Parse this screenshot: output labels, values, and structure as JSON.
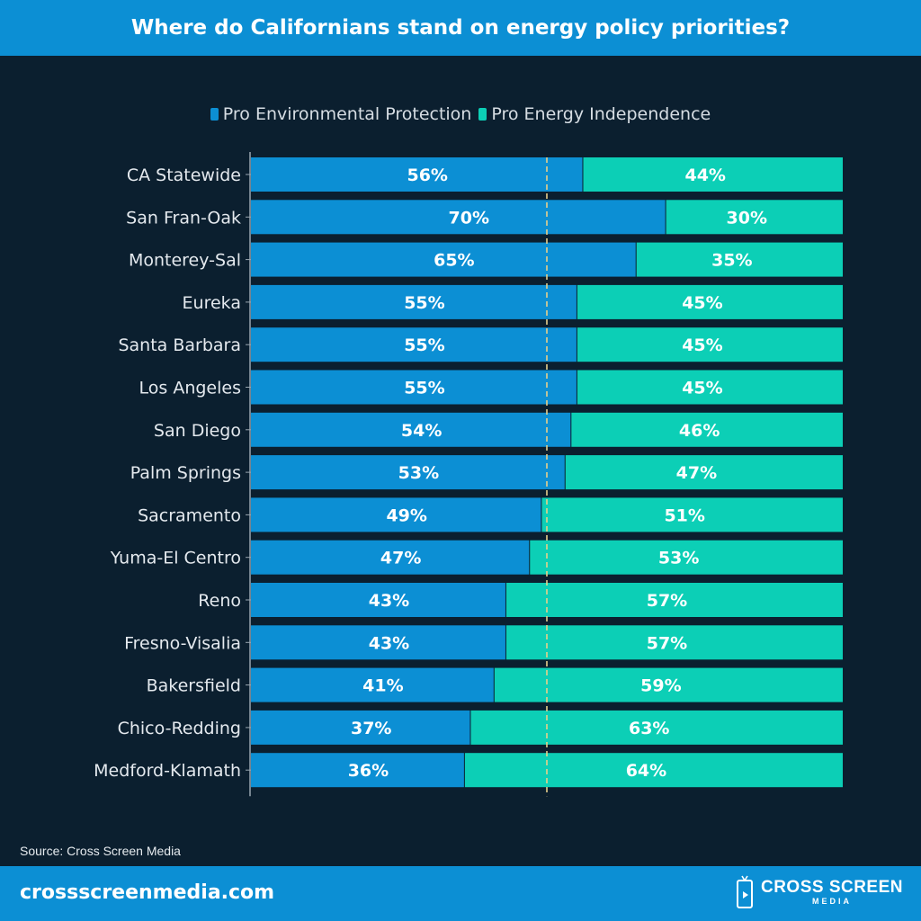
{
  "header": {
    "title": "Where do Californians stand on energy policy priorities?"
  },
  "colors": {
    "env": "#0c8fd4",
    "indep": "#0ccfb6",
    "background": "#0b1f2f",
    "divider": "#e8d08a"
  },
  "chart_data": {
    "type": "bar",
    "orientation": "horizontal-stacked-100",
    "title": "Where do Californians stand on energy policy priorities?",
    "legend_position": "top-center",
    "reference_line": 50,
    "xlim": [
      0,
      100
    ],
    "categories": [
      "CA Statewide",
      "San Fran-Oak",
      "Monterey-Sal",
      "Eureka",
      "Santa Barbara",
      "Los Angeles",
      "San Diego",
      "Palm Springs",
      "Sacramento",
      "Yuma-El Centro",
      "Reno",
      "Fresno-Visalia",
      "Bakersfield",
      "Chico-Redding",
      "Medford-Klamath"
    ],
    "series": [
      {
        "name": "Pro Environmental Protection",
        "values": [
          56,
          70,
          65,
          55,
          55,
          55,
          54,
          53,
          49,
          47,
          43,
          43,
          41,
          37,
          36
        ]
      },
      {
        "name": "Pro Energy Independence",
        "values": [
          44,
          30,
          35,
          45,
          45,
          45,
          46,
          47,
          51,
          53,
          57,
          57,
          59,
          63,
          64
        ]
      }
    ]
  },
  "footer": {
    "source": "Source: Cross Screen Media",
    "url": "crossscreenmedia.com",
    "brand_name": "CROSS SCREEN",
    "brand_sub": "MEDIA"
  }
}
